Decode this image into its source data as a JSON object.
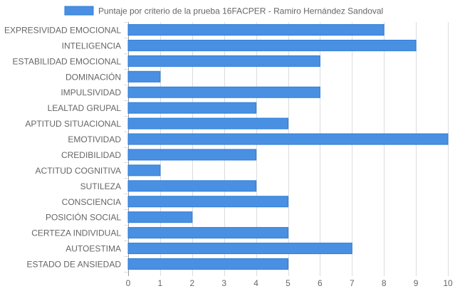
{
  "chart_data": {
    "type": "bar",
    "orientation": "horizontal",
    "series": [
      {
        "name": "Puntaje por criterio de la prueba 16FACPER - Ramiro Hernández Sandoval",
        "color": "#4a90e2",
        "values": [
          8,
          9,
          6,
          1,
          6,
          4,
          5,
          10,
          4,
          1,
          4,
          5,
          2,
          5,
          7,
          5
        ]
      }
    ],
    "categories": [
      "EXPRESIVIDAD EMOCIONAL",
      "INTELIGENCIA",
      "ESTABILIDAD EMOCIONAL",
      "DOMINACIÓN",
      "IMPULSIVIDAD",
      "LEALTAD GRUPAL",
      "APTITUD SITUACIONAL",
      "EMOTIVIDAD",
      "CREDIBILIDAD",
      "ACTITUD COGNITIVA",
      "SUTILEZA",
      "CONSCIENCIA",
      "POSICIÓN SOCIAL",
      "CERTEZA INDIVIDUAL",
      "AUTOESTIMA",
      "ESTADO DE ANSIEDAD"
    ],
    "xlim": [
      0,
      10
    ],
    "xticks": [
      "0",
      "1",
      "2",
      "3",
      "4",
      "5",
      "6",
      "7",
      "8",
      "9",
      "10"
    ],
    "grid": true,
    "legend_position": "top"
  }
}
